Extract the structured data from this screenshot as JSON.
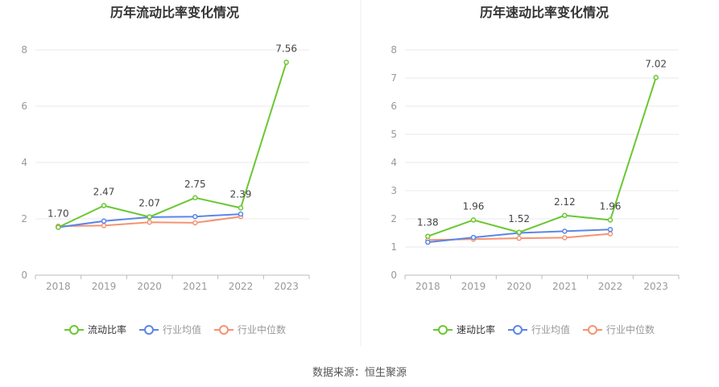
{
  "colors": {
    "primary": "#6ac733",
    "average": "#5b86e5",
    "median": "#f59372",
    "axis": "#999999",
    "grid": "#e8e8e8"
  },
  "source": "数据来源：恒生聚源",
  "chart_data": [
    {
      "type": "line",
      "title": "历年流动比率变化情况",
      "categories": [
        "2018",
        "2019",
        "2020",
        "2021",
        "2022",
        "2023"
      ],
      "ylim": [
        0,
        8
      ],
      "yticks": [
        "0",
        "2",
        "4",
        "6",
        "8"
      ],
      "grid": true,
      "legend_position": "bottom",
      "series": [
        {
          "name": "流动比率",
          "values": [
            1.7,
            2.47,
            2.07,
            2.75,
            2.39,
            7.56
          ],
          "labels": [
            "1.70",
            "2.47",
            "2.07",
            "2.75",
            "2.39",
            "7.56"
          ]
        },
        {
          "name": "行业均值",
          "values": [
            1.7,
            1.92,
            2.06,
            2.08,
            2.17,
            null
          ]
        },
        {
          "name": "行业中位数",
          "values": [
            1.74,
            1.76,
            1.88,
            1.86,
            2.08,
            null
          ]
        }
      ]
    },
    {
      "type": "line",
      "title": "历年速动比率变化情况",
      "categories": [
        "2018",
        "2019",
        "2020",
        "2021",
        "2022",
        "2023"
      ],
      "ylim": [
        0,
        8
      ],
      "yticks": [
        "0",
        "1",
        "2",
        "3",
        "4",
        "5",
        "6",
        "7",
        "8"
      ],
      "grid": true,
      "legend_position": "bottom",
      "series": [
        {
          "name": "速动比率",
          "values": [
            1.38,
            1.96,
            1.52,
            2.12,
            1.96,
            7.02
          ],
          "labels": [
            "1.38",
            "1.96",
            "1.52",
            "2.12",
            "1.96",
            "7.02"
          ]
        },
        {
          "name": "行业均值",
          "values": [
            1.17,
            1.34,
            1.5,
            1.56,
            1.62,
            null
          ]
        },
        {
          "name": "行业中位数",
          "values": [
            1.25,
            1.28,
            1.31,
            1.33,
            1.47,
            null
          ]
        }
      ]
    }
  ]
}
